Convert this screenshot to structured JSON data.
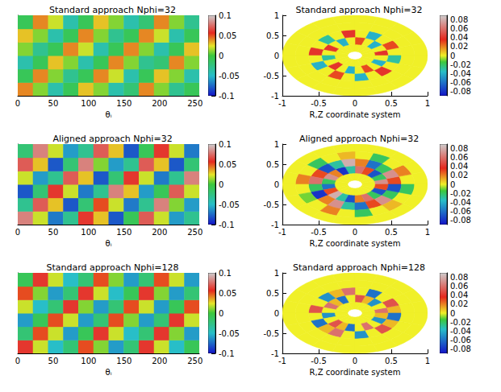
{
  "chart_data": [
    {
      "type": "heatmap",
      "title": "Standard approach Nphi=32",
      "xlabel": "θᵢ",
      "xlim": [
        0,
        256
      ],
      "xticks": [
        0,
        50,
        100,
        150,
        200,
        250
      ],
      "ylim": [
        0,
        6
      ],
      "tick_labels": "x",
      "cells": {
        "values": [
          [
            0.04,
            0.01,
            -0.04,
            -0.01,
            0.03,
            0.01,
            -0.04,
            -0.02,
            0.04,
            0.01,
            -0.03,
            -0.01
          ],
          [
            -0.01,
            0.04,
            0.01,
            -0.03,
            -0.01,
            0.04,
            0.02,
            -0.04,
            -0.01,
            0.03,
            0.01,
            -0.04
          ],
          [
            -0.04,
            -0.01,
            0.03,
            0.01,
            -0.04,
            -0.01,
            0.04,
            0.01,
            -0.03,
            -0.02,
            0.04,
            0.01
          ],
          [
            0.01,
            -0.03,
            -0.01,
            0.04,
            0.02,
            -0.04,
            -0.01,
            0.04,
            0.01,
            -0.04,
            -0.01,
            0.03
          ],
          [
            0.03,
            0.01,
            -0.04,
            -0.01,
            0.04,
            0.01,
            -0.03,
            -0.01,
            0.04,
            0.02,
            -0.04,
            -0.01
          ],
          [
            -0.01,
            0.04,
            0.02,
            -0.04,
            -0.01,
            0.03,
            0.01,
            -0.04,
            -0.02,
            0.04,
            0.01,
            -0.03
          ]
        ]
      },
      "colorbar": {
        "range": [
          -0.1,
          0.1
        ],
        "ticks": [
          -0.1,
          -0.05,
          0,
          0.05,
          0.1
        ]
      }
    },
    {
      "type": "heatmap",
      "title": "Standard approach Nphi=32",
      "xlabel": "R,Z coordinate system",
      "xlim": [
        -1,
        1
      ],
      "xticks": [
        -1,
        -0.5,
        0,
        0.5,
        1
      ],
      "ylim": [
        -1,
        1
      ],
      "yticks": [
        -1,
        -0.5,
        0,
        0.5,
        1
      ],
      "cells": {
        "r": [
          0.1,
          1
        ],
        "values": [
          [
            0,
            0,
            0,
            0,
            0,
            0,
            0,
            0,
            0,
            0,
            0,
            0,
            0,
            0,
            0,
            0,
            0,
            0,
            0,
            0
          ],
          [
            0.04,
            0,
            -0.04,
            0,
            0.03,
            0,
            -0.04,
            0,
            0.04,
            0,
            -0.03,
            0,
            0.04,
            0,
            -0.04,
            0,
            0.03,
            0,
            -0.04,
            0
          ],
          [
            0,
            0.03,
            0,
            -0.04,
            0,
            0.04,
            0,
            -0.03,
            0,
            0.04,
            0,
            -0.04,
            0,
            0.03,
            0,
            -0.04,
            0,
            0.04,
            0,
            -0.03
          ],
          [
            0,
            0,
            0,
            0,
            0,
            0,
            0,
            0,
            0,
            0,
            0,
            0,
            0,
            0,
            0,
            0,
            0,
            0,
            0,
            0
          ],
          [
            0,
            0,
            0,
            0,
            0,
            0,
            0,
            0,
            0,
            0,
            0,
            0,
            0,
            0,
            0,
            0,
            0,
            0,
            0,
            0
          ]
        ]
      },
      "colorbar": {
        "range": [
          -0.09,
          0.09
        ],
        "ticks": [
          -0.08,
          -0.06,
          -0.04,
          -0.02,
          0,
          0.02,
          0.04,
          0.06,
          0.08
        ]
      }
    },
    {
      "type": "heatmap",
      "title": "Aligned approach Nphi=32",
      "xlabel": "θᵢ",
      "xlim": [
        0,
        256
      ],
      "xticks": [
        0,
        50,
        100,
        150,
        200,
        250
      ],
      "ylim": [
        0,
        6
      ],
      "tick_labels": "x",
      "cells": {
        "values": [
          [
            0.08,
            0.02,
            -0.07,
            -0.03,
            0.06,
            0.03,
            -0.08,
            -0.01,
            0.07,
            0.02,
            -0.06,
            -0.03
          ],
          [
            -0.03,
            0.07,
            0.03,
            -0.08,
            -0.02,
            0.05,
            0.02,
            -0.07,
            -0.03,
            0.08,
            0.01,
            -0.06
          ],
          [
            -0.08,
            -0.02,
            0.06,
            0.02,
            -0.07,
            -0.03,
            0.08,
            0.03,
            -0.06,
            -0.01,
            0.07,
            0.02
          ],
          [
            0.02,
            -0.06,
            -0.03,
            0.07,
            0.03,
            -0.08,
            -0.02,
            0.06,
            0.02,
            -0.07,
            -0.03,
            0.08
          ],
          [
            0.07,
            0.03,
            -0.08,
            -0.02,
            0.08,
            0.01,
            -0.06,
            -0.03,
            0.07,
            0.03,
            -0.08,
            -0.02
          ],
          [
            -0.02,
            0.08,
            0.02,
            -0.06,
            -0.03,
            0.07,
            0.03,
            -0.08,
            -0.01,
            0.06,
            0.02,
            -0.07
          ]
        ]
      },
      "colorbar": {
        "range": [
          -0.1,
          0.1
        ],
        "ticks": [
          -0.1,
          -0.05,
          0,
          0.05,
          0.1
        ]
      }
    },
    {
      "type": "heatmap",
      "title": "Aligned approach Nphi=32",
      "xlabel": "R,Z coordinate system",
      "xlim": [
        -1,
        1
      ],
      "xticks": [
        -1,
        -0.5,
        0,
        0.5,
        1
      ],
      "ylim": [
        -1,
        1
      ],
      "yticks": [
        -1,
        -0.5,
        0,
        0.5,
        1
      ],
      "cells": {
        "r": [
          0.1,
          1
        ],
        "values": [
          [
            0,
            0,
            0,
            0,
            0,
            0,
            0,
            0,
            0,
            0,
            0,
            0,
            0,
            0,
            0,
            0,
            0,
            0,
            0,
            0
          ],
          [
            0.07,
            -0.02,
            -0.07,
            0.03,
            0.06,
            -0.03,
            -0.08,
            0.02,
            0.07,
            -0.02,
            -0.06,
            0.03,
            0.08,
            -0.03,
            -0.07,
            0.02,
            0.06,
            -0.02,
            -0.07,
            0.03
          ],
          [
            0.03,
            0.07,
            -0.02,
            -0.06,
            0.02,
            0.08,
            -0.03,
            -0.07,
            0.03,
            0.06,
            -0.02,
            -0.08,
            0.02,
            0.07,
            -0.03,
            -0.06,
            0.03,
            0.07,
            -0.02,
            -0.07
          ],
          [
            0,
            0.02,
            0,
            -0.02,
            0,
            0.01,
            0,
            -0.02,
            0,
            0.02,
            0,
            -0.01,
            0,
            0.02,
            0,
            -0.02,
            0,
            0.01,
            0,
            -0.02
          ],
          [
            0,
            0,
            0,
            0,
            0,
            0,
            0,
            0,
            0,
            0,
            0,
            0,
            0,
            0,
            0,
            0,
            0,
            0,
            0,
            0
          ]
        ]
      },
      "colorbar": {
        "range": [
          -0.09,
          0.09
        ],
        "ticks": [
          -0.08,
          -0.06,
          -0.04,
          -0.02,
          0,
          0.02,
          0.04,
          0.06,
          0.08
        ]
      }
    },
    {
      "type": "heatmap",
      "title": "Standard approach Nphi=128",
      "xlabel": "θᵢ",
      "xlim": [
        0,
        256
      ],
      "xticks": [
        0,
        50,
        100,
        150,
        200,
        250
      ],
      "ylim": [
        0,
        6
      ],
      "tick_labels": "x",
      "cells": {
        "values": [
          [
            0.06,
            0.02,
            -0.05,
            -0.02,
            0.05,
            0.01,
            -0.06,
            -0.02,
            0.06,
            0.02,
            -0.05,
            -0.01
          ],
          [
            -0.02,
            0.05,
            0.02,
            -0.06,
            -0.01,
            0.06,
            0.02,
            -0.05,
            -0.02,
            0.06,
            0.01,
            -0.06
          ],
          [
            -0.06,
            -0.01,
            0.05,
            0.02,
            -0.06,
            -0.02,
            0.05,
            0.01,
            -0.06,
            -0.02,
            0.06,
            0.02
          ],
          [
            0.02,
            -0.05,
            -0.02,
            0.06,
            0.01,
            -0.06,
            -0.02,
            0.05,
            0.02,
            -0.06,
            -0.01,
            0.05
          ],
          [
            0.05,
            0.01,
            -0.06,
            -0.02,
            0.06,
            0.02,
            -0.05,
            -0.01,
            0.06,
            0.01,
            -0.06,
            -0.02
          ],
          [
            -0.01,
            0.06,
            0.02,
            -0.05,
            -0.02,
            0.05,
            0.01,
            -0.06,
            -0.02,
            0.05,
            0.02,
            -0.06
          ]
        ]
      },
      "colorbar": {
        "range": [
          -0.1,
          0.1
        ],
        "ticks": [
          -0.1,
          -0.05,
          0,
          0.05,
          0.1
        ]
      }
    },
    {
      "type": "heatmap",
      "title": "Standard approach Nphi=128",
      "xlabel": "R,Z coordinate system",
      "xlim": [
        -1,
        1
      ],
      "xticks": [
        -1,
        -0.5,
        0,
        0.5,
        1
      ],
      "ylim": [
        -1,
        1
      ],
      "yticks": [
        -1,
        -0.5,
        0,
        0.5,
        1
      ],
      "cells": {
        "r": [
          0.1,
          1
        ],
        "values": [
          [
            0,
            0,
            0,
            0,
            0,
            0,
            0,
            0,
            0,
            0,
            0,
            0,
            0,
            0,
            0,
            0,
            0,
            0,
            0,
            0
          ],
          [
            0.06,
            0,
            -0.05,
            0.01,
            0.05,
            0,
            -0.06,
            0.01,
            0.06,
            0,
            -0.05,
            0,
            0.05,
            0.01,
            -0.06,
            0,
            0.06,
            0,
            -0.05,
            0.01
          ],
          [
            0.01,
            0.05,
            0,
            -0.06,
            0,
            0.06,
            0.01,
            -0.05,
            0,
            0.05,
            0,
            -0.06,
            0.01,
            0.06,
            0,
            -0.05,
            0,
            0.05,
            0.01,
            -0.06
          ],
          [
            0,
            0,
            0,
            0,
            0,
            0,
            0,
            0,
            0,
            0,
            0,
            0,
            0,
            0,
            0,
            0,
            0,
            0,
            0,
            0
          ],
          [
            0,
            0,
            0,
            0,
            0,
            0,
            0,
            0,
            0,
            0,
            0,
            0,
            0,
            0,
            0,
            0,
            0,
            0,
            0,
            0
          ]
        ]
      },
      "colorbar": {
        "range": [
          -0.09,
          0.09
        ],
        "ticks": [
          -0.08,
          -0.06,
          -0.04,
          -0.02,
          0,
          0.02,
          0.04,
          0.06,
          0.08
        ]
      }
    }
  ]
}
